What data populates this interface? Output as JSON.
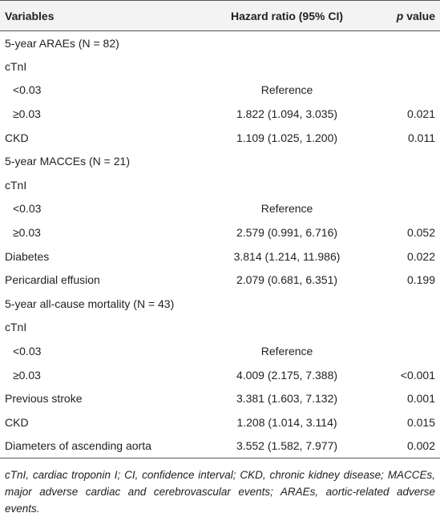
{
  "table": {
    "header": {
      "variables": "Variables",
      "hazard_ratio": "Hazard ratio (95% CI)",
      "p_letter": "p",
      "p_rest": "value"
    },
    "rows": [
      {
        "label": "5-year ARAEs (N = 82)"
      },
      {
        "label": "cTnI"
      },
      {
        "label": "<0.03",
        "hr": "Reference"
      },
      {
        "label": "≥0.03",
        "hr": "1.822 (1.094, 3.035)",
        "p": "0.021"
      },
      {
        "label": "CKD",
        "hr": "1.109 (1.025, 1.200)",
        "p": "0.011"
      },
      {
        "label": "5-year MACCEs (N = 21)"
      },
      {
        "label": "cTnI"
      },
      {
        "label": "<0.03",
        "hr": "Reference"
      },
      {
        "label": "≥0.03",
        "hr": "2.579 (0.991, 6.716)",
        "p": "0.052"
      },
      {
        "label": "Diabetes",
        "hr": "3.814 (1.214, 11.986)",
        "p": "0.022"
      },
      {
        "label": "Pericardial effusion",
        "hr": "2.079 (0.681, 6.351)",
        "p": "0.199"
      },
      {
        "label": "5-year all-cause mortality (N = 43)"
      },
      {
        "label": "cTnI"
      },
      {
        "label": "<0.03",
        "hr": "Reference"
      },
      {
        "label": "≥0.03",
        "hr": "4.009 (2.175, 7.388)",
        "p": "<0.001"
      },
      {
        "label": "Previous stroke",
        "hr": "3.381 (1.603, 7.132)",
        "p": "0.001"
      },
      {
        "label": "CKD",
        "hr": "1.208 (1.014, 3.114)",
        "p": "0.015"
      },
      {
        "label": "Diameters of ascending aorta",
        "hr": "3.552 (1.582, 7.977)",
        "p": "0.002"
      }
    ],
    "footnote": "cTnI, cardiac troponin I; CI, confidence interval; CKD, chronic kidney disease; MACCEs, major adverse cardiac and cerebrovascular events; ARAEs, aortic-related adverse events."
  }
}
